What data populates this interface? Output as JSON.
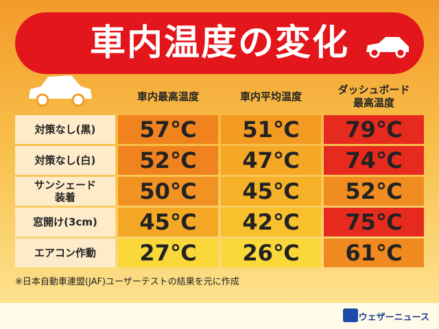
{
  "header": {
    "title": "車内温度の変化"
  },
  "table": {
    "columns": [
      "車内最高温度",
      "車内平均温度",
      "ダッシュボード\n最高温度"
    ],
    "rows": [
      {
        "label": "対策なし(黒)",
        "cells": [
          "57℃",
          "51℃",
          "79℃"
        ]
      },
      {
        "label": "対策なし(白)",
        "cells": [
          "52℃",
          "47℃",
          "74℃"
        ]
      },
      {
        "label": "サンシェード\n装着",
        "cells": [
          "50℃",
          "45℃",
          "52℃"
        ]
      },
      {
        "label": "窓開け(3cm)",
        "cells": [
          "45℃",
          "42℃",
          "75℃"
        ]
      },
      {
        "label": "エアコン作動",
        "cells": [
          "27℃",
          "26℃",
          "61℃"
        ]
      }
    ]
  },
  "footnote": "※日本自動車連盟(JAF)ユーザーテストの結果を元に作成",
  "brand": "ウェザーニュース"
}
